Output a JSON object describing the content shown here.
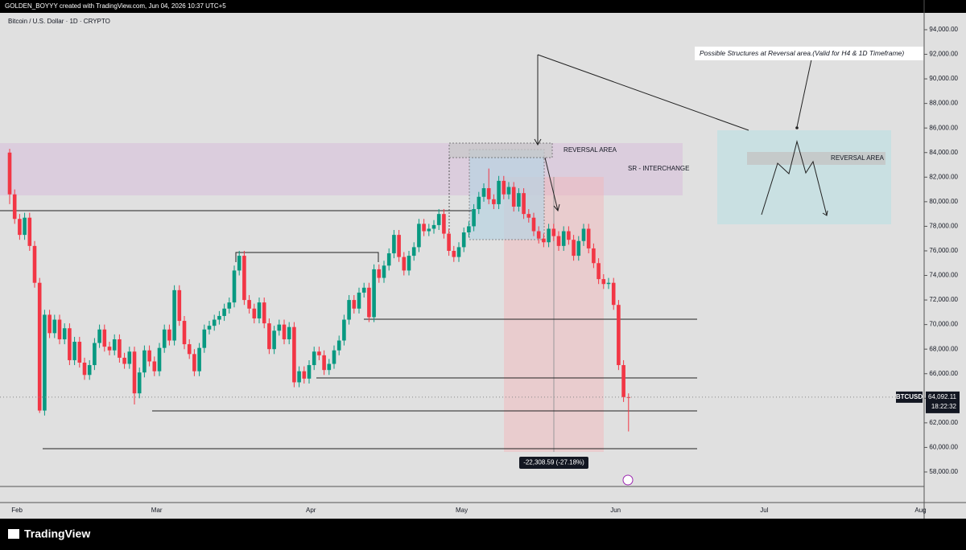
{
  "chart_data": {
    "type": "candlestick",
    "header": "GOLDEN_BOYYY created with TradingView.com, Jun 04, 2026 10:37 UTC+5",
    "title": "Bitcoin / U.S. Dollar · 1D · CRYPTO",
    "x_labels": [
      "Feb",
      "Mar",
      "Apr",
      "May",
      "Jun",
      "Jul",
      "Aug"
    ],
    "up_color": "#089981",
    "down_color": "#f23645",
    "open": [
      84000,
      80600,
      78600,
      77300,
      78700,
      76400,
      73400,
      63000,
      70800,
      69300,
      70400,
      68800,
      69700,
      67100,
      68600,
      66900,
      65900,
      66700,
      68500,
      69600,
      68200,
      67900,
      68800,
      67300,
      66800,
      67800,
      64400,
      66100,
      67900,
      67000,
      66200,
      68100,
      69600,
      68700,
      72800,
      70300,
      68400,
      67600,
      66200,
      68100,
      69600,
      69900,
      70400,
      70700,
      71300,
      71800,
      74400,
      75600,
      72000,
      71300,
      70500,
      71800,
      70100,
      68000,
      69500,
      70000,
      68800,
      69800,
      65300,
      66200,
      65600,
      66700,
      67800,
      67500,
      66300,
      66800,
      67900,
      68700,
      70400,
      72000,
      71300,
      72600,
      73000,
      70600,
      74500,
      73800,
      74800,
      75800,
      77300,
      75500,
      74400,
      75600,
      76300,
      78200,
      77600,
      77800,
      78100,
      79000,
      77400,
      76000,
      75500,
      76300,
      77500,
      78000,
      79400,
      80400,
      81100,
      80200,
      79800,
      81700,
      80600,
      81200,
      79600,
      80700,
      79000,
      78700,
      77600,
      77000,
      76700,
      77800,
      77200,
      76400,
      77600,
      76900,
      75600,
      76800,
      77800,
      76200,
      75000,
      73700,
      73300,
      73400,
      71600,
      66700,
      64100
    ],
    "high": [
      84300,
      81000,
      79000,
      79100,
      79100,
      76800,
      73800,
      71200,
      71200,
      70800,
      70800,
      70100,
      70100,
      69000,
      69000,
      67300,
      67100,
      68900,
      70000,
      70000,
      68600,
      69200,
      69200,
      67700,
      68200,
      68200,
      66500,
      68300,
      68300,
      67400,
      68500,
      70000,
      70000,
      73200,
      73200,
      70700,
      68800,
      68000,
      68500,
      70000,
      70300,
      70800,
      71100,
      71700,
      72200,
      74800,
      76000,
      76000,
      72400,
      71700,
      72200,
      72200,
      70500,
      69900,
      70400,
      70400,
      70200,
      70200,
      66600,
      66600,
      67100,
      68200,
      68200,
      67900,
      67200,
      68300,
      69100,
      70800,
      72400,
      72400,
      73000,
      73400,
      73400,
      74900,
      74900,
      75200,
      76200,
      77700,
      77700,
      75900,
      76000,
      76700,
      78600,
      78600,
      78200,
      78500,
      79400,
      79400,
      77800,
      76400,
      76700,
      77900,
      78400,
      79800,
      80800,
      81500,
      82700,
      80600,
      82100,
      82100,
      81600,
      81600,
      81100,
      81100,
      79400,
      79100,
      78000,
      77400,
      78200,
      78200,
      77600,
      78000,
      78000,
      77300,
      77200,
      78200,
      78200,
      76600,
      75400,
      74100,
      73800,
      73800,
      72000,
      67100,
      64400
    ],
    "low": [
      79800,
      78200,
      76900,
      76900,
      76000,
      73000,
      62800,
      62600,
      68900,
      68900,
      68400,
      68400,
      66700,
      66700,
      66500,
      65500,
      65500,
      66300,
      68100,
      67800,
      67500,
      67500,
      66900,
      66400,
      66400,
      63500,
      64000,
      65700,
      66600,
      65800,
      65800,
      67700,
      68300,
      68300,
      69900,
      68000,
      67200,
      65800,
      65800,
      67700,
      69200,
      69500,
      70000,
      70300,
      70900,
      71400,
      74000,
      71600,
      70900,
      70100,
      70100,
      69700,
      67600,
      67600,
      69100,
      68400,
      68400,
      64900,
      64900,
      65200,
      65200,
      66300,
      67100,
      65900,
      65900,
      66400,
      67500,
      68300,
      70000,
      70900,
      70900,
      72200,
      70200,
      70200,
      73400,
      73400,
      74400,
      75400,
      75100,
      74000,
      74000,
      75200,
      75900,
      77200,
      77200,
      77400,
      77700,
      77000,
      75600,
      75100,
      75100,
      75900,
      77100,
      77600,
      79000,
      80000,
      79800,
      79400,
      79400,
      80200,
      80200,
      79200,
      79200,
      78600,
      78300,
      77200,
      76600,
      76300,
      76300,
      76800,
      76000,
      76000,
      76500,
      75200,
      75200,
      76400,
      75800,
      74600,
      73300,
      72900,
      72900,
      71200,
      66300,
      63700,
      61300
    ],
    "close": [
      80600,
      78600,
      77300,
      78700,
      76400,
      73400,
      63000,
      70800,
      69300,
      70400,
      68800,
      69700,
      67100,
      68600,
      66900,
      65900,
      66700,
      68500,
      69600,
      68200,
      67900,
      68800,
      67300,
      66800,
      67800,
      64400,
      66100,
      67900,
      67000,
      66200,
      68100,
      69600,
      68700,
      72800,
      70300,
      68400,
      67600,
      66200,
      68100,
      69600,
      69900,
      70400,
      70700,
      71300,
      71800,
      74400,
      75600,
      72000,
      71300,
      70500,
      71800,
      70100,
      68000,
      69500,
      70000,
      68800,
      69800,
      65300,
      66200,
      65600,
      66700,
      67800,
      67500,
      66300,
      66800,
      67900,
      68700,
      70400,
      72000,
      71300,
      72600,
      73000,
      70600,
      74500,
      73800,
      74800,
      75800,
      77300,
      75500,
      74400,
      75600,
      76300,
      78200,
      77600,
      77800,
      78100,
      79000,
      77400,
      76000,
      75500,
      76300,
      77500,
      78000,
      79400,
      80400,
      81100,
      80200,
      79800,
      81700,
      80600,
      81200,
      79600,
      80700,
      79000,
      78700,
      77600,
      77000,
      76700,
      77800,
      77200,
      76400,
      77600,
      76900,
      75600,
      76800,
      77800,
      76200,
      75000,
      73700,
      73300,
      73400,
      71600,
      66700,
      64100,
      64092.11
    ],
    "ylim": [
      56820,
      96420
    ],
    "yticks": [
      {
        "value": 58000,
        "label": "58,000.00"
      },
      {
        "value": 60000,
        "label": "60,000.00"
      },
      {
        "value": 62000,
        "label": "62,000.00"
      },
      {
        "value": 64000,
        "label": "64,000.00"
      },
      {
        "value": 66000,
        "label": "66,000.00"
      },
      {
        "value": 68000,
        "label": "68,000.00"
      },
      {
        "value": 70000,
        "label": "70,000.00"
      },
      {
        "value": 72000,
        "label": "72,000.00"
      },
      {
        "value": 74000,
        "label": "74,000.00"
      },
      {
        "value": 76000,
        "label": "76,000.00"
      },
      {
        "value": 78000,
        "label": "78,000.00"
      },
      {
        "value": 80000,
        "label": "80,000.00"
      },
      {
        "value": 82000,
        "label": "82,000.00"
      },
      {
        "value": 84000,
        "label": "84,000.00"
      },
      {
        "value": 86000,
        "label": "86,000.00"
      },
      {
        "value": 88000,
        "label": "88,000.00"
      },
      {
        "value": 90000,
        "label": "90,000.00"
      },
      {
        "value": 92000,
        "label": "92,000.00"
      },
      {
        "value": 94000,
        "label": "94,000.00"
      }
    ],
    "last_price": {
      "symbol": "BTCUSD",
      "price": "64,092.11",
      "countdown": "18:22:32"
    },
    "annotations": {
      "reversal_area": "REVERSAL AREA",
      "sr_interchange": "SR - INTERCHANGE",
      "callout": "Possible Structures at Reversal area.(Valid for H4 & 1D Timeframe)",
      "sketch_reversal_area": "REVERSAL AREA",
      "measure": "-22,308.59 (-27.18%)"
    },
    "footer": "TradingView"
  }
}
